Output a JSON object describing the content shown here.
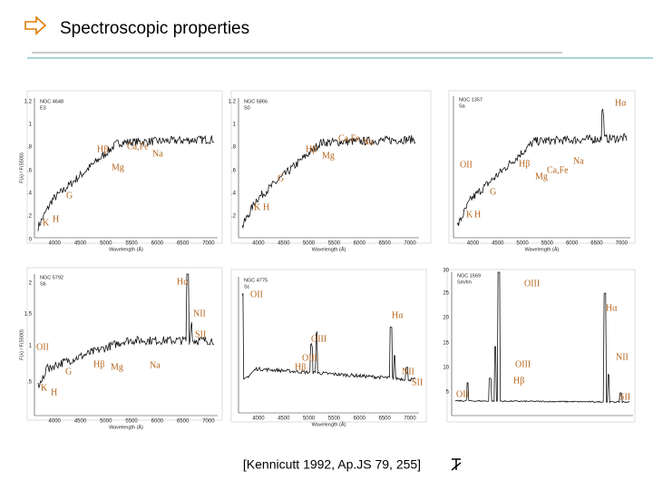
{
  "header": {
    "title": "Spectroscopic properties"
  },
  "panels": [
    {
      "name": "NGC 4648",
      "type": "E3",
      "x_ticks": [
        4000,
        4500,
        5000,
        5500,
        6000,
        6500,
        7000
      ],
      "y_ticks": [
        "1.2",
        "1",
        ".8",
        ".6",
        ".4",
        ".2",
        "0"
      ],
      "x_label": "Wavelength (Å)",
      "y_label": "F(λ) / F(5500)",
      "lines": [
        "Hβ",
        "Ca,Fe",
        "Na",
        "Mg",
        "G",
        "K",
        "H"
      ]
    },
    {
      "name": "NGC 5866",
      "type": "S0",
      "x_ticks": [
        4000,
        4500,
        5000,
        5500,
        6000,
        6500,
        7000
      ],
      "y_ticks": [
        "1.2",
        "1",
        ".8",
        ".6",
        ".4",
        ".2"
      ],
      "x_label": "Wavelength (Å)",
      "lines": [
        "Hβ",
        "Ca,Fe",
        "Na",
        "Mg",
        "G",
        "K",
        "H"
      ]
    },
    {
      "name": "NGC 1357",
      "type": "Sa",
      "x_ticks": [
        4000,
        4500,
        5000,
        5500,
        6000,
        6500,
        7000
      ],
      "y_ticks": [],
      "x_label": "Wavelength (Å)",
      "lines": [
        "Hα",
        "OII",
        "Hβ",
        "Ca,Fe",
        "Mg",
        "Na",
        "G",
        "K",
        "H"
      ]
    },
    {
      "name": "NGC 5792",
      "type": "Sb",
      "x_ticks": [
        4000,
        4500,
        5000,
        5500,
        6000,
        6500,
        7000
      ],
      "y_ticks": [
        "2",
        "1.5",
        "1",
        ".5"
      ],
      "x_label": "Wavelength (Å)",
      "y_label": "F(λ) / F(5500)",
      "lines": [
        "Hα",
        "NII",
        "SII",
        "OII",
        "G",
        "Hβ",
        "Mg",
        "Na",
        "K",
        "H"
      ]
    },
    {
      "name": "NGC 4775",
      "type": "Sc",
      "x_ticks": [
        4000,
        4500,
        5000,
        5500,
        6000,
        6500,
        7000
      ],
      "y_ticks": [],
      "x_label": "Wavelength (Å)",
      "lines": [
        "OII",
        "Hα",
        "OIII",
        "OIII",
        "Hβ",
        "NII",
        "SII"
      ]
    },
    {
      "name": "NGC 1569",
      "type": "Sm/Im",
      "x_ticks": [],
      "y_ticks": [
        "30",
        "25",
        "20",
        "15",
        "10",
        "5"
      ],
      "lines": [
        "OIII",
        "Hα",
        "NII",
        "OIII",
        "Hβ",
        "OII",
        "SII"
      ]
    }
  ],
  "citation": "[Kennicutt 1992, Ap.JS 79, 255]"
}
